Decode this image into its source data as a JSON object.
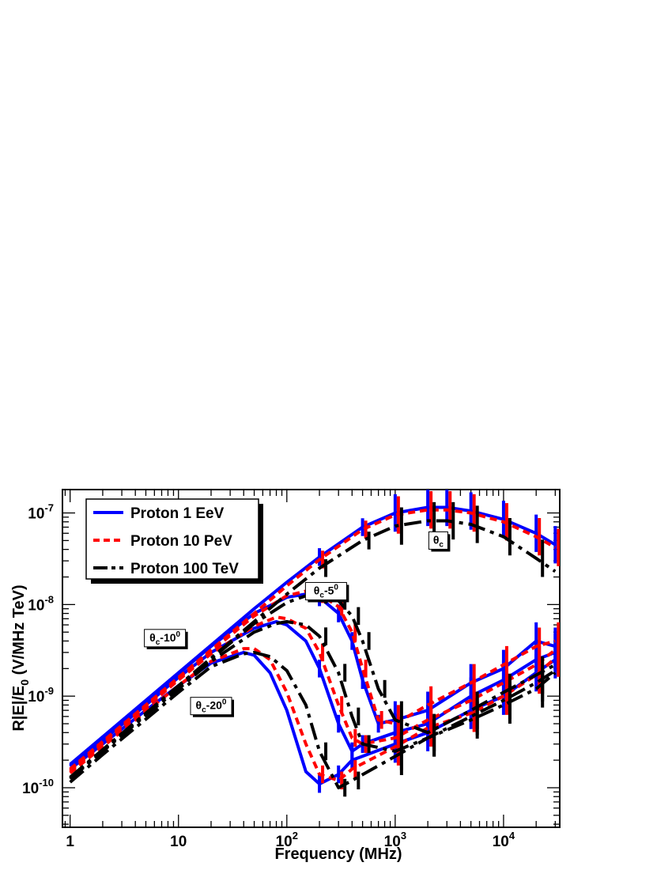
{
  "chart_data": {
    "type": "line",
    "title": "",
    "xlabel": "Frequency (MHz)",
    "ylabel_main": "R|E|/E",
    "ylabel_sub": "0",
    "ylabel_unit": " (V/MHz TeV)",
    "xscale": "log",
    "yscale": "log",
    "xlim": [
      0.85,
      33000
    ],
    "ylim": [
      3.7e-11,
      1.8e-07
    ],
    "grid": false,
    "legend_placement": "top-left",
    "x_ticks": [
      {
        "value": 1,
        "label": "1",
        "sup": ""
      },
      {
        "value": 10,
        "label": "10",
        "sup": ""
      },
      {
        "value": 100,
        "label": "10",
        "sup": "2"
      },
      {
        "value": 1000,
        "label": "10",
        "sup": "3"
      },
      {
        "value": 10000,
        "label": "10",
        "sup": "4"
      }
    ],
    "y_ticks": [
      {
        "value": 1e-10,
        "label": "10",
        "sup": "-10"
      },
      {
        "value": 1e-09,
        "label": "10",
        "sup": "-9"
      },
      {
        "value": 1e-08,
        "label": "10",
        "sup": "-8"
      },
      {
        "value": 1e-07,
        "label": "10",
        "sup": "-7"
      }
    ],
    "series": [
      {
        "name": "Proton 1 EeV",
        "color": "#0000ff",
        "dash": "solid",
        "curves": [
          {
            "angle": "θc",
            "x": [
              1,
              2,
              5,
              10,
              20,
              50,
              100,
              200,
              500,
              1000,
              2000,
              3000,
              5000,
              10000,
              20000,
              30000
            ],
            "y": [
              1.8e-10,
              3.6e-10,
              9e-10,
              1.8e-09,
              3.6e-09,
              9e-09,
              1.75e-08,
              3.3e-08,
              7e-08,
              1e-07,
              1.15e-07,
              1.15e-07,
              1.05e-07,
              8.5e-08,
              6e-08,
              4.5e-08
            ]
          },
          {
            "angle": "θc-5",
            "x": [
              1,
              2,
              5,
              10,
              20,
              50,
              100,
              150,
              200,
              300,
              400,
              500,
              700,
              1000,
              2000,
              5000,
              10000,
              20000,
              30000
            ],
            "y": [
              1.75e-10,
              3.5e-10,
              8.8e-10,
              1.75e-09,
              3.5e-09,
              8e-09,
              1.2e-08,
              1.3e-08,
              1.2e-08,
              8e-09,
              4e-09,
              1.5e-09,
              5e-10,
              5.5e-10,
              7e-10,
              1.4e-09,
              2e-09,
              4e-09,
              3.5e-09
            ]
          },
          {
            "angle": "θc-10",
            "x": [
              1,
              2,
              5,
              10,
              20,
              50,
              80,
              100,
              150,
              200,
              300,
              400,
              500,
              1000,
              2000,
              5000,
              10000,
              20000,
              30000
            ],
            "y": [
              1.7e-10,
              3.3e-10,
              8e-10,
              1.6e-09,
              3e-09,
              5.5e-09,
              6.5e-09,
              6e-09,
              4e-09,
              2e-09,
              5e-10,
              2.5e-10,
              3e-10,
              4e-10,
              5e-10,
              1e-09,
              1.5e-09,
              2.5e-09,
              3e-09
            ]
          },
          {
            "angle": "θc-20",
            "x": [
              1,
              2,
              5,
              10,
              20,
              40,
              50,
              70,
              100,
              150,
              200,
              300,
              400,
              1000,
              2000,
              5000,
              10000,
              20000,
              30000
            ],
            "y": [
              1.6e-10,
              3e-10,
              7e-10,
              1.3e-09,
              2.3e-09,
              3e-09,
              2.8e-09,
              1.8e-09,
              7e-10,
              1.5e-10,
              1.1e-10,
              1.4e-10,
              2e-10,
              3e-10,
              4e-10,
              7e-10,
              1e-09,
              1.8e-09,
              2.5e-09
            ]
          }
        ]
      },
      {
        "name": "Proton 10 PeV",
        "color": "#ff0000",
        "dash": "dash",
        "curves": [
          {
            "angle": "θc",
            "x": [
              1,
              2,
              5,
              10,
              20,
              50,
              100,
              200,
              500,
              1000,
              2000,
              3000,
              5000,
              10000,
              20000,
              30000
            ],
            "y": [
              1.6e-10,
              3.2e-10,
              8e-10,
              1.6e-09,
              3.2e-09,
              8e-09,
              1.6e-08,
              3.1e-08,
              6.6e-08,
              9.5e-08,
              1.08e-07,
              1.08e-07,
              1e-07,
              8e-08,
              5.5e-08,
              4.2e-08
            ]
          },
          {
            "angle": "θc-5",
            "x": [
              1,
              2,
              5,
              10,
              20,
              50,
              100,
              150,
              200,
              300,
              400,
              500,
              700,
              1000,
              2000,
              5000,
              10000,
              20000,
              30000
            ],
            "y": [
              1.55e-10,
              3.1e-10,
              7.8e-10,
              1.55e-09,
              3.1e-09,
              7.5e-09,
              1.25e-08,
              1.4e-08,
              1.3e-08,
              9.5e-09,
              5e-09,
              2e-09,
              5.5e-10,
              5e-10,
              8e-10,
              1.4e-09,
              2.2e-09,
              3.5e-09,
              4e-09
            ]
          },
          {
            "angle": "θc-10",
            "x": [
              1,
              2,
              5,
              10,
              20,
              50,
              80,
              100,
              150,
              200,
              300,
              400,
              500,
              1000,
              2000,
              5000,
              10000,
              20000,
              30000
            ],
            "y": [
              1.5e-10,
              3e-10,
              7.5e-10,
              1.5e-09,
              2.9e-09,
              5.8e-09,
              7.3e-09,
              7e-09,
              5.5e-09,
              3e-09,
              8e-10,
              3.5e-10,
              3e-10,
              3.5e-10,
              5.5e-10,
              9e-10,
              1.4e-09,
              2.2e-09,
              3.2e-09
            ]
          },
          {
            "angle": "θc-20",
            "x": [
              1,
              2,
              5,
              10,
              20,
              40,
              50,
              70,
              100,
              150,
              200,
              300,
              400,
              1000,
              2000,
              5000,
              10000,
              20000,
              30000
            ],
            "y": [
              1.45e-10,
              2.8e-10,
              6.8e-10,
              1.3e-09,
              2.4e-09,
              3.3e-09,
              3.3e-09,
              2.5e-09,
              1.1e-09,
              3e-10,
              1.4e-10,
              1.2e-10,
              1.6e-10,
              2.8e-10,
              4.5e-10,
              6.5e-10,
              1e-09,
              1.7e-09,
              2.6e-09
            ]
          }
        ]
      },
      {
        "name": "Proton 100 TeV",
        "color": "#000000",
        "dash": "dashdot",
        "curves": [
          {
            "angle": "θc",
            "x": [
              1,
              2,
              5,
              10,
              20,
              50,
              100,
              200,
              500,
              1000,
              2000,
              3000,
              5000,
              10000,
              20000,
              30000
            ],
            "y": [
              1.3e-10,
              2.6e-10,
              6.5e-10,
              1.3e-09,
              2.6e-09,
              6.5e-09,
              1.3e-08,
              2.5e-08,
              5e-08,
              7.2e-08,
              8.2e-08,
              8.2e-08,
              7.5e-08,
              5.5e-08,
              3.2e-08,
              2.3e-08
            ]
          },
          {
            "angle": "θc-5",
            "x": [
              1,
              2,
              5,
              10,
              20,
              50,
              100,
              150,
              200,
              300,
              400,
              500,
              700,
              1000,
              2000,
              5000,
              10000,
              20000,
              30000
            ],
            "y": [
              1.28e-10,
              2.55e-10,
              6.4e-10,
              1.28e-09,
              2.55e-09,
              6.2e-09,
              1.05e-08,
              1.25e-08,
              1.28e-08,
              1.1e-08,
              7.5e-09,
              4e-09,
              1.2e-09,
              5.5e-10,
              4e-10,
              7e-10,
              1.1e-09,
              1.7e-09,
              2.2e-09
            ]
          },
          {
            "angle": "θc-10",
            "x": [
              1,
              2,
              5,
              10,
              20,
              50,
              80,
              100,
              150,
              200,
              300,
              400,
              500,
              1000,
              2000,
              5000,
              10000,
              20000,
              30000
            ],
            "y": [
              1.25e-10,
              2.5e-10,
              6.2e-10,
              1.2e-09,
              2.4e-09,
              5e-09,
              6.2e-09,
              6.5e-09,
              6e-09,
              4.5e-09,
              1.8e-09,
              6e-10,
              3e-10,
              2.5e-10,
              3.5e-10,
              6e-10,
              9e-10,
              1.4e-09,
              1.9e-09
            ]
          },
          {
            "angle": "θc-20",
            "x": [
              1,
              2,
              5,
              10,
              20,
              40,
              50,
              70,
              100,
              150,
              200,
              300,
              400,
              1000,
              2000,
              5000,
              10000,
              20000,
              30000
            ],
            "y": [
              1.15e-10,
              2.3e-10,
              5.6e-10,
              1.1e-09,
              2.1e-09,
              2.9e-09,
              3e-09,
              2.7e-09,
              1.9e-09,
              8e-10,
              2.5e-10,
              1e-10,
              1.2e-10,
              2.2e-10,
              3.5e-10,
              5.5e-10,
              8e-10,
              1.2e-09,
              1.8e-09
            ]
          }
        ]
      }
    ],
    "annotations": [
      {
        "main": "θ",
        "sub": "c",
        "tail": "",
        "sup": "",
        "x": 2500,
        "y": 5e-08
      },
      {
        "main": "θ",
        "sub": "c",
        "tail": "-5",
        "sup": "0",
        "x": 230,
        "y": 1.4e-08
      },
      {
        "main": "θ",
        "sub": "c",
        "tail": "-10",
        "sup": "0",
        "x": 7.5,
        "y": 4.3e-09
      },
      {
        "main": "θ",
        "sub": "c",
        "tail": "-20",
        "sup": "0",
        "x": 20,
        "y": 7.8e-10
      }
    ]
  }
}
